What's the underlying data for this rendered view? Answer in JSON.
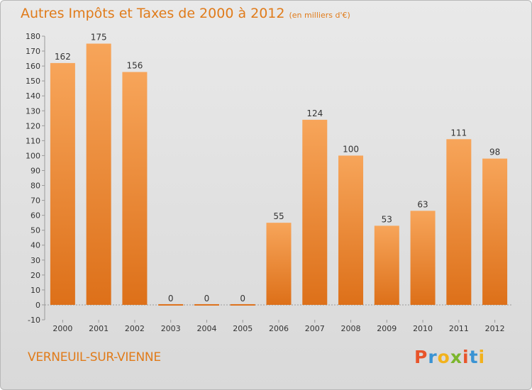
{
  "title": "Autres Impôts et Taxes de 2000 à 2012",
  "subtitle": "(en milliers d'€)",
  "commune": "VERNEUIL-SUR-VIENNE",
  "logo": {
    "letters": [
      "P",
      "r",
      "o",
      "x",
      "i",
      "t",
      "i"
    ],
    "colors": [
      "#e8542a",
      "#3a93d3",
      "#f2b21c",
      "#7bb62d",
      "#e8542a",
      "#3a93d3",
      "#f2b21c"
    ]
  },
  "colors": {
    "bar_light": "#f7a55a",
    "bar_dark": "#dd7019",
    "title": "#e07b1a"
  },
  "chart_data": {
    "type": "bar",
    "categories": [
      "2000",
      "2001",
      "2002",
      "2003",
      "2004",
      "2005",
      "2006",
      "2007",
      "2008",
      "2009",
      "2010",
      "2011",
      "2012"
    ],
    "values": [
      162,
      175,
      156,
      0,
      0,
      0,
      55,
      124,
      100,
      53,
      63,
      111,
      98
    ],
    "data_labels": [
      "162",
      "175",
      "156",
      "0",
      "0",
      "0",
      "55",
      "124",
      "100",
      "53",
      "63",
      "111",
      "98"
    ],
    "ylim": [
      -10,
      180
    ],
    "yticks": [
      -10,
      0,
      10,
      20,
      30,
      40,
      50,
      60,
      70,
      80,
      90,
      100,
      110,
      120,
      130,
      140,
      150,
      160,
      170,
      180
    ],
    "grid": false,
    "legend": "none"
  }
}
